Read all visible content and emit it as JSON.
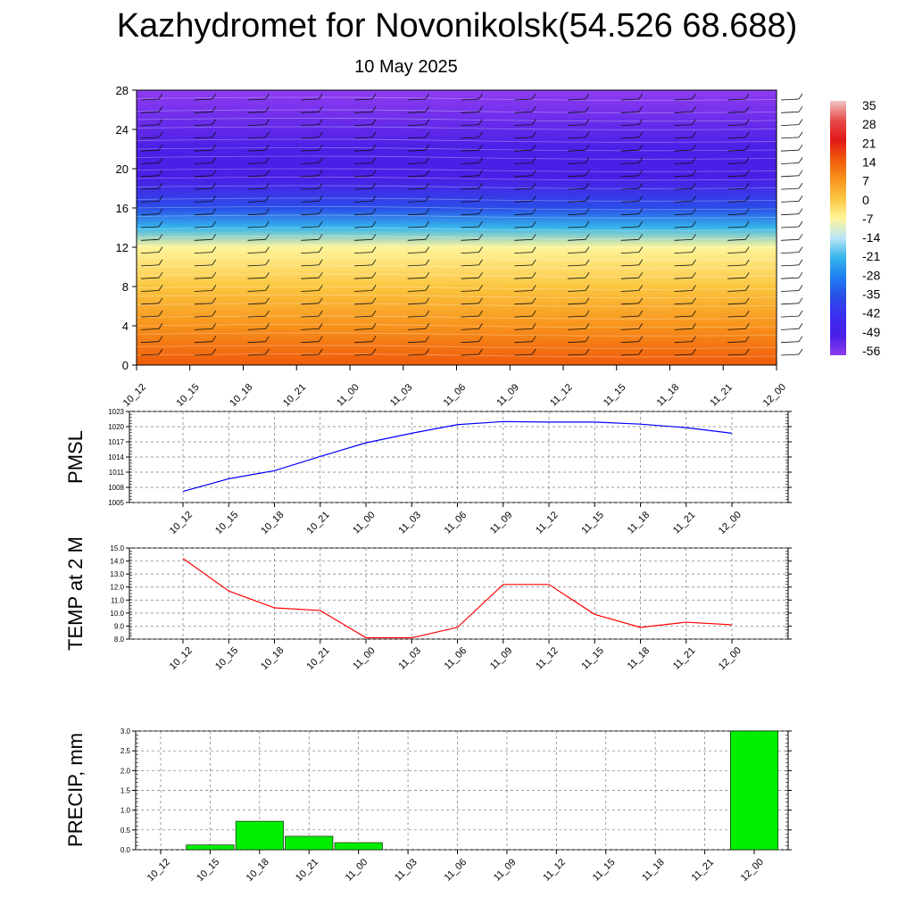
{
  "header": {
    "title": "Kazhydromet for Novonikolsk(54.526 68.688)",
    "date": "10 May 2025"
  },
  "time_labels": [
    "10_12",
    "10_15",
    "10_18",
    "10_21",
    "11_00",
    "11_03",
    "11_06",
    "11_09",
    "11_12",
    "11_15",
    "11_18",
    "11_21",
    "12_00"
  ],
  "colorbar": {
    "labels": [
      "35",
      "28",
      "21",
      "14",
      "7",
      "0",
      "-7",
      "-14",
      "-21",
      "-28",
      "-35",
      "-42",
      "-49",
      "-56"
    ],
    "colors": [
      "#f2c4c4",
      "#e84a4a",
      "#e21818",
      "#f05a0a",
      "#f7931c",
      "#fbc640",
      "#fff59b",
      "#b9e6f5",
      "#36b5ec",
      "#1e7ff0",
      "#2a4de8",
      "#3b2ef0",
      "#4a1fe6",
      "#8e3cf0"
    ]
  },
  "chart_data": [
    {
      "type": "heatmap",
      "name": "cross-section",
      "title": "",
      "xlabel": "",
      "ylabel": "",
      "categories": [
        "10_12",
        "10_15",
        "10_18",
        "10_21",
        "11_00",
        "11_03",
        "11_06",
        "11_09",
        "11_12",
        "11_15",
        "11_18",
        "11_21",
        "12_00"
      ],
      "y_ticks": [
        0,
        4,
        8,
        12,
        16,
        20,
        24,
        28
      ],
      "ylim": [
        0,
        28
      ],
      "colorscale_range": [
        -56,
        35
      ],
      "description_levels": [
        {
          "y": 0,
          "value": 14
        },
        {
          "y": 4,
          "value": 7
        },
        {
          "y": 8,
          "value": 0
        },
        {
          "y": 12,
          "value": -10
        },
        {
          "y": 14,
          "value": -24
        },
        {
          "y": 16,
          "value": -35
        },
        {
          "y": 19,
          "value": -48
        },
        {
          "y": 22,
          "value": -50
        },
        {
          "y": 28,
          "value": -54
        }
      ]
    },
    {
      "type": "line",
      "ylabel": "PMSL",
      "categories": [
        "10_12",
        "10_15",
        "10_18",
        "10_21",
        "11_00",
        "11_03",
        "11_06",
        "11_09",
        "11_12",
        "11_15",
        "11_18",
        "11_21",
        "12_00"
      ],
      "series": [
        {
          "values": [
            1007.2,
            1009.7,
            1011.3,
            1014.1,
            1016.8,
            1018.7,
            1020.4,
            1021.0,
            1020.9,
            1020.9,
            1020.5,
            1019.8,
            1018.7
          ]
        }
      ],
      "y_ticks": [
        1005,
        1008,
        1011,
        1014,
        1017,
        1020,
        1023
      ],
      "ylim": [
        1005,
        1023
      ],
      "color": "#0000ff",
      "grid": true
    },
    {
      "type": "line",
      "ylabel": "TEMP at 2 M",
      "categories": [
        "10_12",
        "10_15",
        "10_18",
        "10_21",
        "11_00",
        "11_03",
        "11_06",
        "11_09",
        "11_12",
        "11_15",
        "11_18",
        "11_21",
        "12_00"
      ],
      "series": [
        {
          "values": [
            14.2,
            11.7,
            10.4,
            10.2,
            8.1,
            8.1,
            8.9,
            12.2,
            12.2,
            9.9,
            8.9,
            9.3,
            9.1
          ]
        }
      ],
      "y_ticks": [
        "15.0",
        "14.0",
        "13.0",
        "12.0",
        "11.0",
        "10.0",
        "9.0",
        "8.0"
      ],
      "ylim": [
        8,
        15
      ],
      "color": "#ff0000",
      "grid": true
    },
    {
      "type": "bar",
      "ylabel": "PRECIP, mm",
      "categories": [
        "10_12",
        "10_15",
        "10_18",
        "10_21",
        "11_00",
        "11_03",
        "11_06",
        "11_09",
        "11_12",
        "11_15",
        "11_18",
        "11_21",
        "12_00"
      ],
      "values": [
        0,
        0.12,
        0.72,
        0.34,
        0.18,
        0,
        0,
        0,
        0,
        0,
        0,
        0,
        3.0
      ],
      "y_ticks": [
        "3.0",
        "2.5",
        "2.0",
        "1.5",
        "1.0",
        "0.5",
        "0.0"
      ],
      "ylim": [
        0,
        3
      ],
      "color": "#00ee00",
      "grid": true
    }
  ]
}
